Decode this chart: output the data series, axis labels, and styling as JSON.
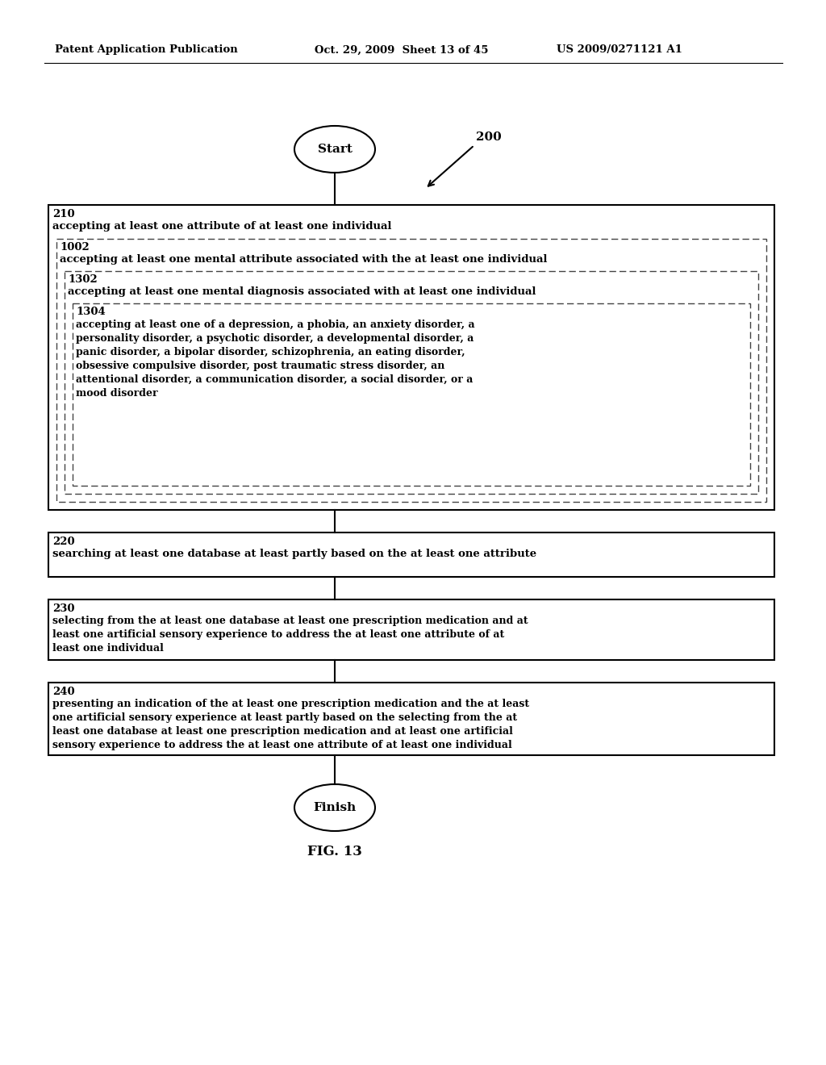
{
  "header_left": "Patent Application Publication",
  "header_mid": "Oct. 29, 2009  Sheet 13 of 45",
  "header_right": "US 2009/0271121 A1",
  "start_label": "Start",
  "finish_label": "Finish",
  "fig_label": "FIG. 13",
  "diagram_label": "200",
  "box210_num": "210",
  "box210_text": "accepting at least one attribute of at least one individual",
  "box1002_num": "1002",
  "box1002_text": "accepting at least one mental attribute associated with the at least one individual",
  "box1302_num": "1302",
  "box1302_text": "accepting at least one mental diagnosis associated with at least one individual",
  "box1304_num": "1304",
  "box1304_lines": [
    "accepting at least one of a depression, a phobia, an anxiety disorder, a",
    "personality disorder, a psychotic disorder, a developmental disorder, a",
    "panic disorder, a bipolar disorder, schizophrenia, an eating disorder,",
    "obsessive compulsive disorder, post traumatic stress disorder, an",
    "attentional disorder, a communication disorder, a social disorder, or a",
    "mood disorder"
  ],
  "box220_num": "220",
  "box220_text": "searching at least one database at least partly based on the at least one attribute",
  "box230_num": "230",
  "box230_lines": [
    "selecting from the at least one database at least one prescription medication and at",
    "least one artificial sensory experience to address the at least one attribute of at",
    "least one individual"
  ],
  "box240_num": "240",
  "box240_lines": [
    "presenting an indication of the at least one prescription medication and the at least",
    "one artificial sensory experience at least partly based on the selecting from the at",
    "least one database at least one prescription medication and at least one artificial",
    "sensory experience to address the at least one attribute of at least one individual"
  ],
  "bg_color": "#ffffff",
  "text_color": "#000000"
}
